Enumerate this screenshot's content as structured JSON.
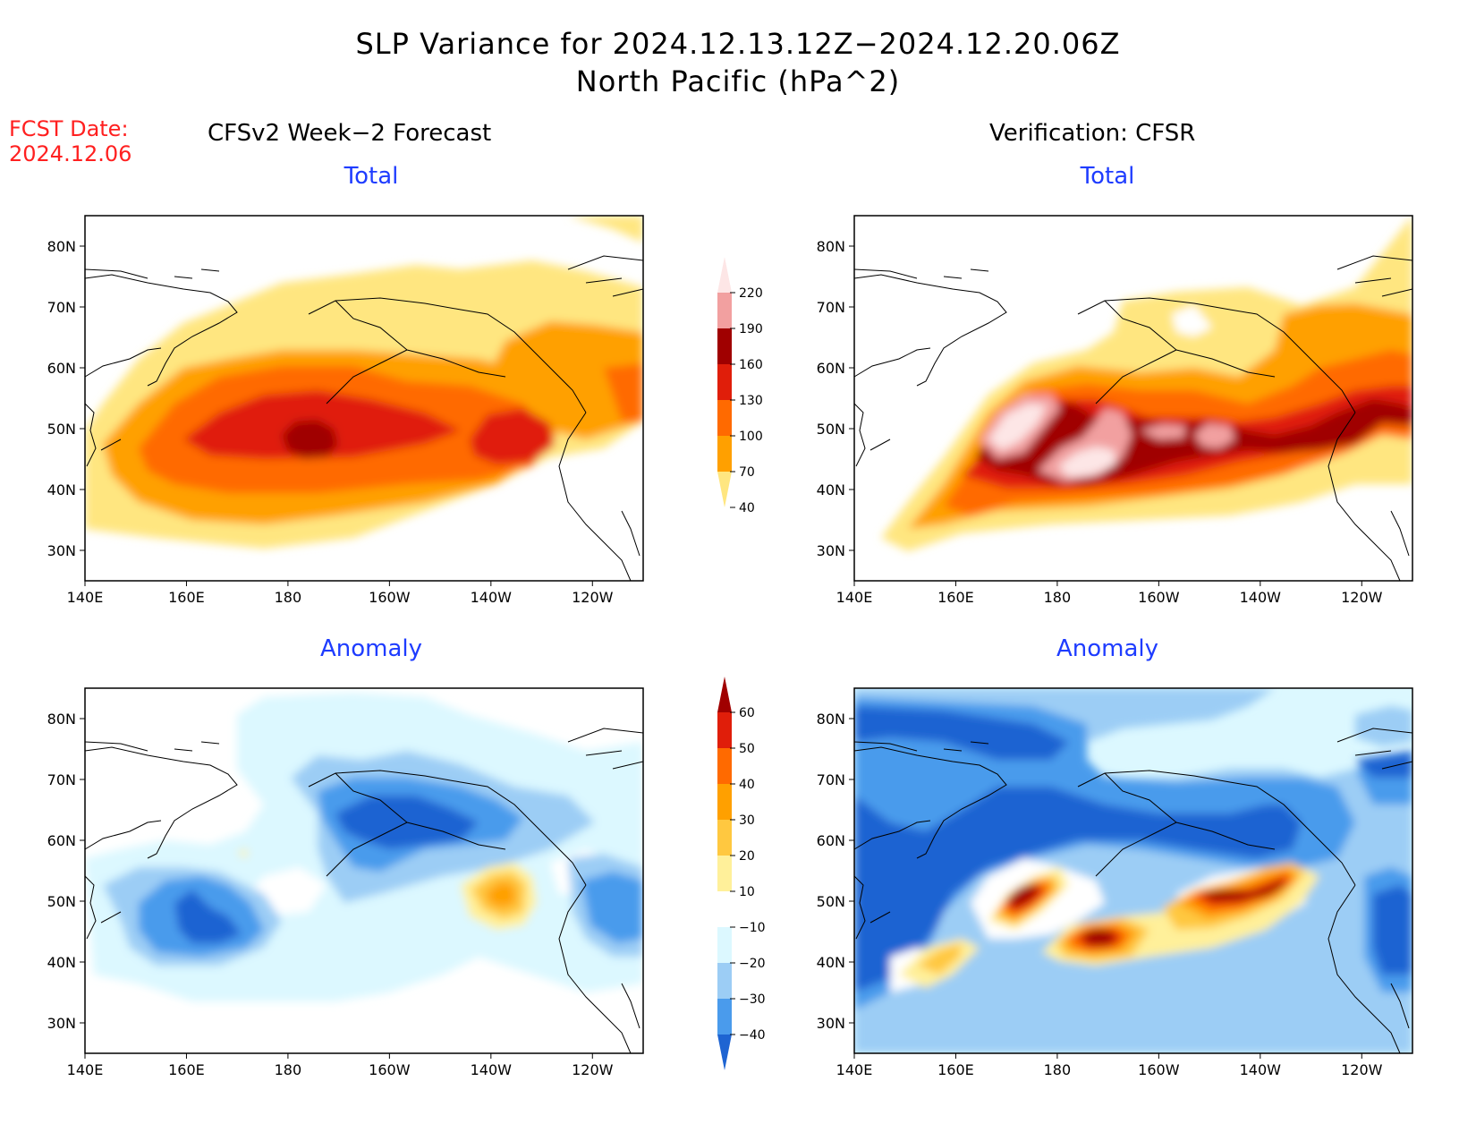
{
  "header": {
    "title_line1": "SLP Variance for 2024.12.13.12Z−2024.12.20.06Z",
    "title_line2": "North Pacific (hPa^2)",
    "fcst_label": "FCST Date:",
    "fcst_date": "2024.12.06",
    "left_column_title": "CFSv2 Week−2 Forecast",
    "right_column_title": "Verification: CFSR"
  },
  "panels": {
    "fcst_total_title": "Total",
    "verif_total_title": "Total",
    "fcst_anom_title": "Anomaly",
    "verif_anom_title": "Anomaly"
  },
  "axes": {
    "lon_labels": [
      "140E",
      "160E",
      "180",
      "160W",
      "140W",
      "120W"
    ],
    "lat_labels": [
      "80N",
      "70N",
      "60N",
      "50N",
      "40N",
      "30N"
    ]
  },
  "colorbars": {
    "total": {
      "labels": [
        "220",
        "190",
        "160",
        "130",
        "100",
        "70",
        "40"
      ],
      "colors": [
        "#fde6e6",
        "#f2a0a0",
        "#a00000",
        "#e01e0a",
        "#ff6a00",
        "#ffa000",
        "#ffe680"
      ]
    },
    "anomaly": {
      "labels": [
        "60",
        "50",
        "40",
        "30",
        "20",
        "10",
        "−10",
        "−20",
        "−30",
        "−40"
      ],
      "colors": [
        "#a00000",
        "#e01e0a",
        "#ff6a00",
        "#ffa000",
        "#ffc840",
        "#fff09a",
        "#ffffff",
        "#dcf8ff",
        "#9ccdf5",
        "#4a9bec",
        "#1e64d2"
      ]
    }
  },
  "palette": {
    "fcst_total": [
      "#ffe680",
      "#ffa000",
      "#ff6a00",
      "#e01e0a",
      "#a00000"
    ],
    "verif_total": [
      "#ffe680",
      "#ffa000",
      "#ff6a00",
      "#e01e0a",
      "#a00000",
      "#f2a0a0",
      "#fde6e6"
    ],
    "neg": [
      "#dcf8ff",
      "#9ccdf5",
      "#4a9bec",
      "#1e64d2"
    ],
    "pos": [
      "#fff09a",
      "#ffc840",
      "#ffa000",
      "#ff6a00",
      "#e01e0a",
      "#a00000"
    ]
  }
}
